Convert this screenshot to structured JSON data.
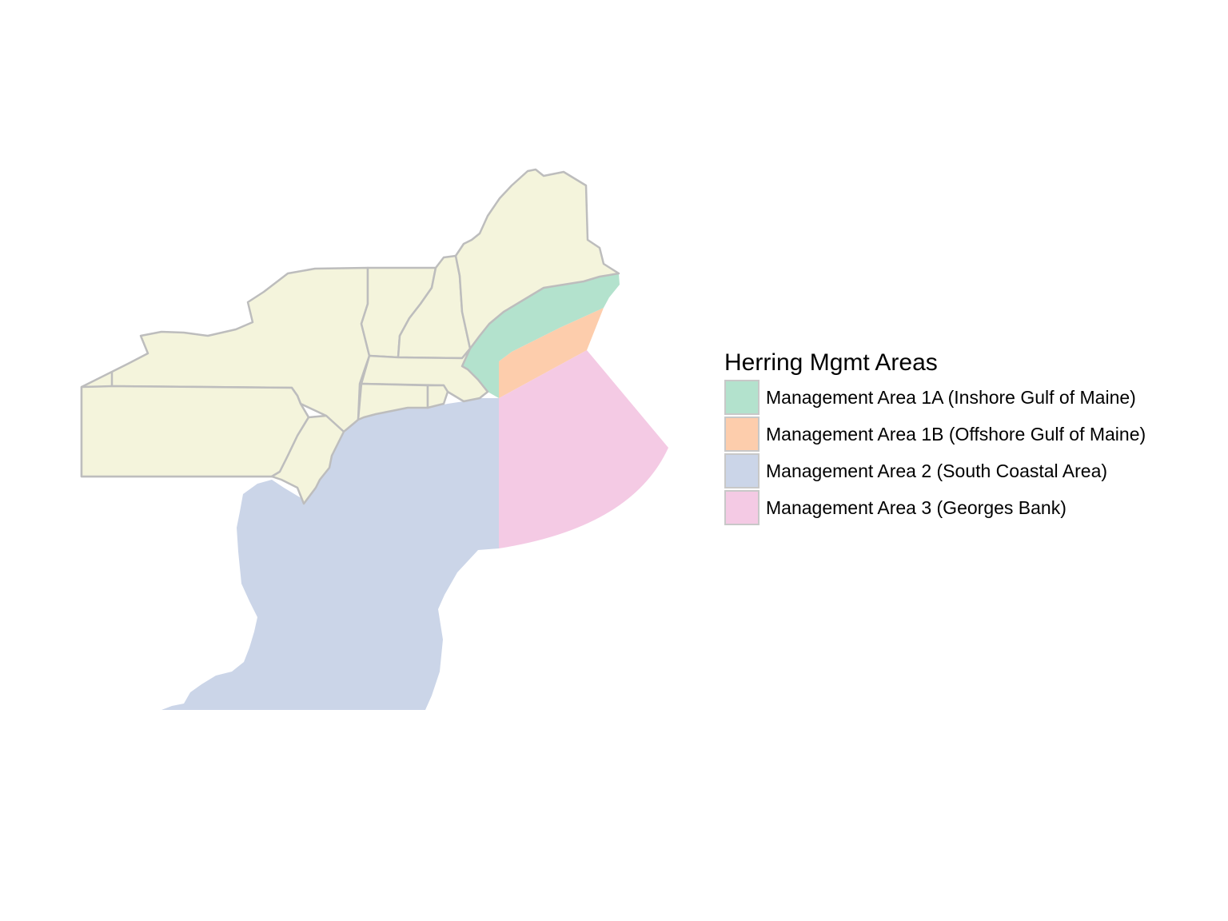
{
  "legend": {
    "title": "Herring Mgmt Areas",
    "items": [
      {
        "label": "Management Area 1A (Inshore Gulf of Maine)",
        "color": "#b3e2cd"
      },
      {
        "label": "Management Area 1B (Offshore Gulf of Maine)",
        "color": "#fdcdac"
      },
      {
        "label": "Management Area 2 (South Coastal Area)",
        "color": "#cbd5e8"
      },
      {
        "label": "Management Area 3 (Georges Bank)",
        "color": "#f4cae4"
      }
    ]
  },
  "colors": {
    "land": "#f4f4dc",
    "state_border": "#bdbdbd",
    "background": "#ffffff"
  }
}
